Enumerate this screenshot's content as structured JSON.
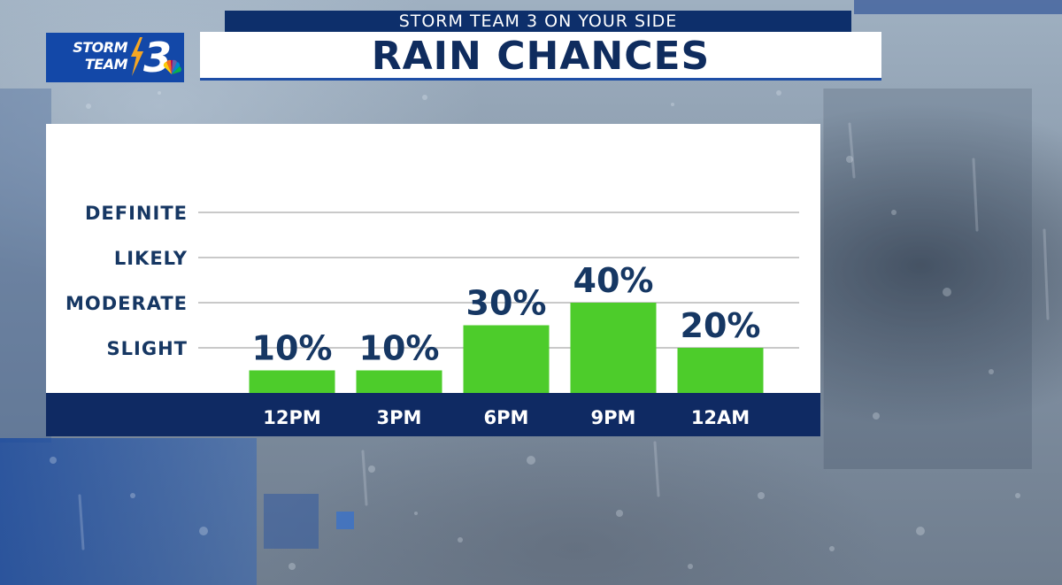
{
  "header": {
    "tagline": "STORM TEAM 3 ON YOUR SIDE",
    "title": "RAIN CHANCES"
  },
  "logo": {
    "text_line1": "STORM",
    "text_line2": "TEAM",
    "channel_number": "3"
  },
  "colors": {
    "navy": "#0f2a63",
    "bar_green": "#4dcc2b",
    "label_text": "#163763",
    "logo_blue": "#1348a8"
  },
  "chart_data": {
    "type": "bar",
    "title": "RAIN CHANCES",
    "categories": [
      "12PM",
      "3PM",
      "6PM",
      "9PM",
      "12AM"
    ],
    "values": [
      10,
      10,
      30,
      40,
      20
    ],
    "value_labels": [
      "10%",
      "10%",
      "30%",
      "40%",
      "20%"
    ],
    "unit": "%",
    "ylim": [
      0,
      80
    ],
    "y_levels": [
      {
        "label": "SLIGHT",
        "value": 20
      },
      {
        "label": "MODERATE",
        "value": 40
      },
      {
        "label": "LIKELY",
        "value": 60
      },
      {
        "label": "DEFINITE",
        "value": 80
      }
    ],
    "grid": true,
    "bar_color": "#4dcc2b"
  }
}
